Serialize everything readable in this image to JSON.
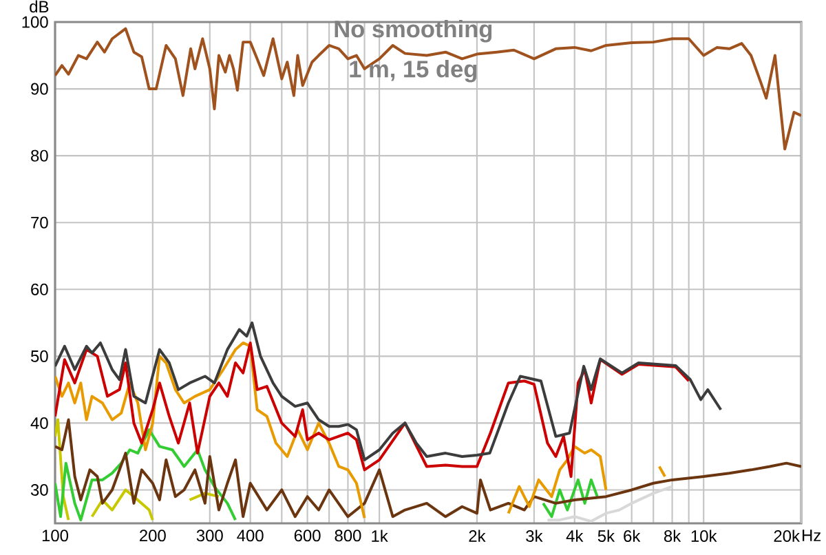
{
  "chart_data": {
    "type": "line",
    "title": "No smoothing",
    "subtitle": "1 m, 15 deg",
    "ylabel": "dB",
    "xlim": [
      100,
      20000
    ],
    "ylim": [
      25,
      100
    ],
    "xticks": [
      100,
      200,
      300,
      400,
      {
        "value": 500,
        "label": null
      },
      600,
      {
        "value": 700,
        "label": null
      },
      800,
      {
        "value": 900,
        "label": null
      },
      {
        "value": 1000,
        "label": "1k"
      },
      {
        "value": 2000,
        "label": "2k"
      },
      {
        "value": 3000,
        "label": "3k"
      },
      {
        "value": 4000,
        "label": "4k"
      },
      {
        "value": 5000,
        "label": "5k"
      },
      {
        "value": 6000,
        "label": "6k"
      },
      {
        "value": 7000,
        "label": null
      },
      {
        "value": 8000,
        "label": "8k"
      },
      {
        "value": 9000,
        "label": null
      },
      {
        "value": 10000,
        "label": "10k"
      },
      {
        "value": 20000,
        "label": "20k"
      }
    ],
    "xlabel": "Hz",
    "yticks": [
      30,
      40,
      50,
      60,
      70,
      80,
      90,
      100
    ],
    "log": "x",
    "grid": true,
    "series": [
      {
        "color": "#d8d8d8",
        "x": [
          3300,
          3600,
          4000,
          4500,
          5000,
          5500,
          6000,
          7000,
          8000
        ],
        "values": [
          25.5,
          25.5,
          26,
          25.3,
          26.5,
          27,
          28,
          29.5,
          30.5
        ]
      },
      {
        "color": "#c8c800",
        "x": [
          100,
          102,
          106,
          110,
          120,
          130,
          140,
          150,
          165,
          175,
          195,
          200,
          230,
          260,
          290,
          320
        ],
        "values": [
          38,
          40.5,
          29,
          25.5,
          null,
          26,
          28.5,
          27,
          30,
          29,
          27,
          25.5,
          null,
          28.5,
          29.5,
          29
        ]
      },
      {
        "color": "#33cc33",
        "x": [
          100,
          104,
          108,
          115,
          120,
          130,
          140,
          150,
          160,
          170,
          180,
          195,
          210,
          230,
          250,
          275,
          290,
          310,
          340,
          360,
          1000,
          3200,
          3400,
          3600,
          3800,
          4100,
          4300,
          4500,
          4700
        ],
        "values": [
          31,
          26,
          34,
          28,
          25.5,
          31.5,
          31.5,
          32.5,
          34,
          36,
          35.5,
          39,
          36.5,
          36,
          33.5,
          36,
          33,
          30.5,
          28,
          25.5,
          null,
          28,
          26,
          30,
          27,
          31.5,
          28,
          31.5,
          29
        ]
      },
      {
        "color": "#6b3510",
        "x": [
          100,
          105,
          110,
          115,
          120,
          128,
          135,
          140,
          150,
          165,
          175,
          185,
          200,
          210,
          220,
          235,
          250,
          270,
          290,
          300,
          320,
          340,
          360,
          380,
          400,
          450,
          500,
          550,
          600,
          650,
          700,
          800,
          900,
          1000,
          1100,
          1200,
          1400,
          1600,
          1800,
          2000,
          2050,
          2200,
          2500,
          2800,
          3000,
          3500,
          4000,
          5000,
          6000,
          7000,
          8000,
          10000,
          12000,
          14000,
          16000,
          18000,
          20000
        ],
        "values": [
          36.5,
          36,
          40.5,
          32,
          28.5,
          33,
          32,
          28,
          30,
          35.5,
          28,
          33,
          31,
          28.5,
          34.5,
          29,
          30,
          33,
          28,
          35,
          27,
          31,
          34.5,
          26,
          31,
          27,
          30,
          26,
          29,
          27,
          30,
          26,
          28,
          33,
          26,
          27,
          28,
          26,
          27.5,
          26.5,
          31.5,
          27,
          28,
          27,
          29,
          28,
          28.5,
          29,
          30,
          31,
          31.5,
          32,
          32.5,
          33,
          33.5,
          34,
          33.5
        ]
      },
      {
        "color": "#e89b00",
        "x": [
          100,
          105,
          110,
          115,
          120,
          125,
          130,
          140,
          150,
          160,
          170,
          180,
          190,
          200,
          210,
          220,
          235,
          250,
          270,
          300,
          330,
          360,
          380,
          400,
          420,
          450,
          480,
          520,
          560,
          600,
          650,
          700,
          750,
          800,
          850,
          900,
          1500,
          2500,
          2700,
          2900,
          3100,
          3400,
          3600,
          3800,
          4000,
          4300,
          4500,
          4800,
          5000,
          6000,
          7300,
          7600
        ],
        "values": [
          47,
          44,
          46,
          43,
          46,
          40.5,
          44,
          43,
          40.5,
          41.5,
          46,
          43,
          36,
          40,
          50,
          49,
          45,
          43,
          44,
          45,
          48,
          51,
          52,
          51.5,
          42,
          41,
          37,
          35,
          39,
          36,
          40,
          37,
          33.5,
          33,
          31,
          25.8,
          null,
          26.5,
          30.5,
          27.5,
          31.5,
          29,
          33,
          34.5,
          36.5,
          35.5,
          36,
          35,
          30,
          null,
          33.5,
          32
        ]
      },
      {
        "color": "#cc0000",
        "x": [
          100,
          107,
          115,
          125,
          135,
          145,
          158,
          165,
          175,
          185,
          200,
          210,
          225,
          240,
          260,
          275,
          300,
          320,
          340,
          360,
          380,
          400,
          420,
          450,
          500,
          550,
          580,
          600,
          650,
          700,
          800,
          850,
          900,
          1000,
          1200,
          1400,
          1600,
          1800,
          2000,
          2200,
          2500,
          2800,
          3000,
          3300,
          3500,
          3700,
          3900,
          4100,
          4300,
          4500,
          4800,
          5600,
          6300,
          8200,
          9000
        ],
        "values": [
          41,
          49.5,
          46,
          51,
          50,
          44,
          45,
          49,
          40,
          37,
          42,
          46,
          41,
          37,
          43,
          35.5,
          44,
          46,
          44,
          49,
          47.5,
          52,
          45,
          45.5,
          40,
          38,
          42,
          37.5,
          38.5,
          37.5,
          38.5,
          37.5,
          33,
          34.5,
          40,
          33.5,
          33.7,
          33.5,
          33.5,
          38.5,
          46,
          46.3,
          45.8,
          37,
          35,
          38,
          32,
          46,
          48,
          43,
          49.5,
          47.3,
          48.8,
          48.4,
          46.3
        ]
      },
      {
        "color": "#3c3c3c",
        "x": [
          100,
          107,
          115,
          125,
          130,
          138,
          150,
          158,
          165,
          175,
          190,
          210,
          225,
          240,
          260,
          290,
          310,
          340,
          370,
          390,
          405,
          430,
          470,
          500,
          550,
          600,
          650,
          700,
          750,
          800,
          850,
          900,
          1000,
          1100,
          1200,
          1300,
          1400,
          1600,
          1800,
          2000,
          2190,
          2500,
          2720,
          3150,
          3500,
          3860,
          4270,
          4500,
          4800,
          5600,
          6300,
          8200,
          9100,
          9800,
          10300,
          11300
        ],
        "values": [
          48.5,
          51.5,
          48,
          51.5,
          50.5,
          52,
          48,
          46.5,
          51,
          44,
          43,
          51,
          49,
          45,
          46,
          47,
          46,
          51,
          54,
          53,
          55,
          50,
          46,
          44,
          42.5,
          43,
          40.5,
          39.5,
          39.5,
          39.8,
          39,
          34.5,
          36,
          38.5,
          40,
          37,
          35,
          35.5,
          35,
          35.2,
          35.5,
          43,
          47,
          46.3,
          38,
          38.5,
          48.5,
          45,
          49.6,
          47.5,
          49,
          48.6,
          46.5,
          43.5,
          45,
          42
        ]
      },
      {
        "color": "#a0521e",
        "x": [
          100,
          105,
          110,
          118,
          125,
          135,
          142,
          150,
          165,
          175,
          185,
          195,
          205,
          220,
          235,
          248,
          262,
          270,
          285,
          300,
          310,
          320,
          335,
          345,
          355,
          365,
          380,
          400,
          420,
          440,
          470,
          500,
          520,
          545,
          560,
          580,
          620,
          650,
          700,
          750,
          800,
          850,
          900,
          1000,
          1100,
          1200,
          1400,
          1600,
          1800,
          2000,
          2300,
          2600,
          3000,
          3500,
          4000,
          4500,
          5000,
          6000,
          7000,
          8000,
          9000,
          10000,
          11000,
          12000,
          13100,
          14000,
          15000,
          15600,
          16600,
          17800,
          19000,
          20000
        ],
        "values": [
          92,
          93.5,
          92.2,
          95,
          94.5,
          97,
          95.5,
          97.5,
          99,
          95.5,
          94.8,
          90,
          90,
          96.5,
          94.5,
          89,
          96,
          93,
          97.5,
          93,
          87,
          95,
          92.5,
          95,
          93,
          89.8,
          97,
          97,
          94.5,
          92,
          97.5,
          91.5,
          94,
          89,
          95,
          90.5,
          94,
          95,
          96.5,
          96,
          94.5,
          95,
          93,
          94.5,
          96.5,
          95.3,
          95,
          95.5,
          94.5,
          95.2,
          95.5,
          95.8,
          94.5,
          96,
          96.2,
          95.7,
          96.5,
          96.9,
          97,
          97.5,
          97.5,
          95,
          96.2,
          96,
          96.8,
          95,
          91,
          88.6,
          95,
          81,
          86.5,
          86
        ]
      }
    ]
  }
}
